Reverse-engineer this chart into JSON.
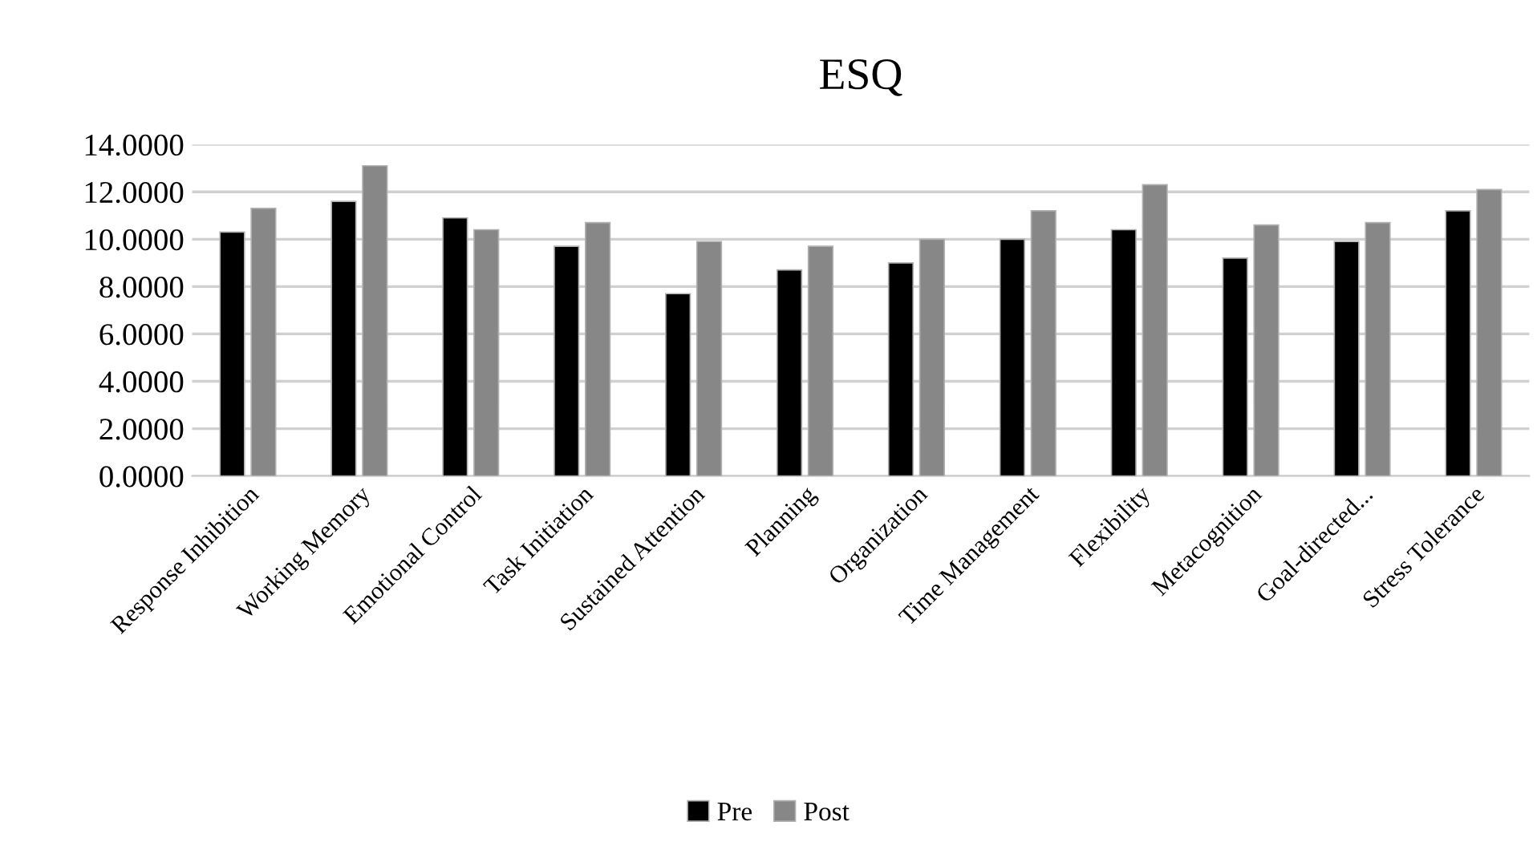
{
  "chart_data": {
    "type": "bar",
    "title": "ESQ",
    "categories": [
      "Response Inhibition",
      "Working Memory",
      "Emotional Control",
      "Task Initiation",
      "Sustained Attention",
      "Planning",
      "Organization",
      "Time Management",
      "Flexibility",
      "Metacognition",
      "Goal-directed...",
      "Stress Tolerance"
    ],
    "series": [
      {
        "name": "Pre",
        "color": "#000000",
        "values": [
          10.3,
          11.6,
          10.9,
          9.7,
          7.7,
          8.7,
          9.0,
          10.0,
          10.4,
          9.2,
          9.9,
          11.2
        ]
      },
      {
        "name": "Post",
        "color": "#878787",
        "values": [
          11.3,
          13.1,
          10.4,
          10.7,
          9.9,
          9.7,
          10.0,
          11.2,
          12.3,
          10.6,
          10.7,
          12.1
        ]
      }
    ],
    "ylim": [
      0,
      14
    ],
    "yticks": [
      {
        "value": 0,
        "label": "0.0000"
      },
      {
        "value": 2,
        "label": "2.0000"
      },
      {
        "value": 4,
        "label": "4.0000"
      },
      {
        "value": 6,
        "label": "6.0000"
      },
      {
        "value": 8,
        "label": "8.0000"
      },
      {
        "value": 10,
        "label": "10.0000"
      },
      {
        "value": 12,
        "label": "12.0000"
      },
      {
        "value": 14,
        "label": "14.0000"
      }
    ],
    "grid": "y",
    "legend": "bottom"
  }
}
